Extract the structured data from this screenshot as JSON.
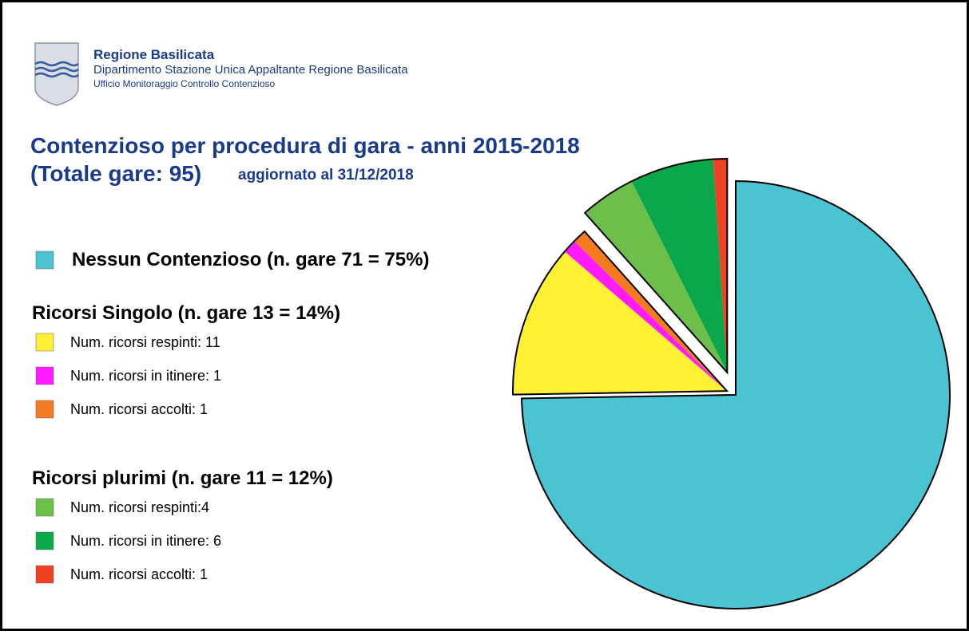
{
  "header": {
    "org": "Regione Basilicata",
    "dept": "Dipartimento Stazione Unica Appaltante Regione Basilicata",
    "office": "Ufficio Monitoraggio Controllo Contenzioso"
  },
  "chart_data": {
    "type": "pie",
    "title": "Contenzioso per procedura di gara - anni 2015-2018",
    "subtitle": "(Totale gare: 95)",
    "note": "aggiornato al 31/12/2018",
    "groups": [
      {
        "name": "Nessun Contenzioso (n. gare 71 = 75%)",
        "series": [
          {
            "color": "#4bc3d3",
            "value": 71
          }
        ]
      },
      {
        "name": "Ricorsi Singolo (n. gare 13 = 14%)",
        "series": [
          {
            "name": "Num. ricorsi respinti: 11",
            "color": "#fff033",
            "value": 11
          },
          {
            "name": "Num. ricorsi in itinere: 1",
            "color": "#ff1aff",
            "value": 1
          },
          {
            "name": "Num. ricorsi accolti: 1",
            "color": "#f47b20",
            "value": 1
          }
        ]
      },
      {
        "name": "Ricorsi plurimi  (n. gare 11 = 12%)",
        "series": [
          {
            "name": "Num. ricorsi respinti:4",
            "color": "#6cbf4b",
            "value": 4
          },
          {
            "name": "Num. ricorsi in itinere: 6",
            "color": "#0aa84a",
            "value": 6
          },
          {
            "name": "Num. ricorsi accolti: 1",
            "color": "#ef4123",
            "value": 1
          }
        ]
      }
    ]
  }
}
